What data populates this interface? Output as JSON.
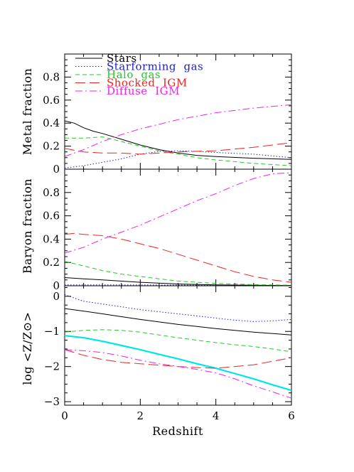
{
  "chart_data": {
    "type": "line",
    "x_label": "Redshift",
    "x_range": [
      0,
      6
    ],
    "x_ticks": [
      0,
      2,
      4,
      6
    ],
    "legend": {
      "placement": "top-left",
      "entries": [
        "Stars",
        "Starforming  gas",
        "Halo  gas",
        "Shocked  IGM",
        "Diffuse  IGM"
      ]
    },
    "colors": {
      "stars": "#000000",
      "starforming": "#2020d0",
      "halo": "#22cc22",
      "shocked": "#ee2222",
      "diffuse": "#ee22ee",
      "cyan": "#00e5e5"
    },
    "panels": [
      {
        "ylabel": "Metal fraction",
        "yrange": [
          0,
          1.0
        ],
        "yticks": [
          0,
          0.2,
          0.4,
          0.6,
          0.8
        ],
        "series": [
          {
            "key": "stars",
            "x": [
              0,
              0.25,
              0.5,
              0.75,
              1,
              1.5,
              2,
              2.5,
              3,
              3.5,
              4,
              5,
              6
            ],
            "y": [
              0.42,
              0.4,
              0.36,
              0.33,
              0.31,
              0.26,
              0.21,
              0.17,
              0.14,
              0.12,
              0.11,
              0.095,
              0.085
            ]
          },
          {
            "key": "starforming",
            "x": [
              0,
              0.5,
              1,
              1.5,
              2,
              2.5,
              3,
              3.5,
              4,
              5,
              6
            ],
            "y": [
              0.01,
              0.03,
              0.06,
              0.09,
              0.13,
              0.155,
              0.16,
              0.155,
              0.145,
              0.13,
              0.1
            ]
          },
          {
            "key": "halo",
            "x": [
              0,
              0.5,
              1,
              1.5,
              2,
              2.5,
              3,
              3.5,
              4,
              5,
              6
            ],
            "y": [
              0.27,
              0.27,
              0.28,
              0.24,
              0.2,
              0.16,
              0.13,
              0.1,
              0.08,
              0.05,
              0.03
            ]
          },
          {
            "key": "shocked",
            "x": [
              0,
              0.5,
              1,
              1.5,
              2,
              2.5,
              3,
              3.5,
              4,
              5,
              6
            ],
            "y": [
              0.18,
              0.15,
              0.14,
              0.14,
              0.13,
              0.14,
              0.15,
              0.155,
              0.16,
              0.19,
              0.23
            ]
          },
          {
            "key": "diffuse",
            "x": [
              0,
              0.5,
              1,
              1.5,
              2,
              2.5,
              3,
              3.5,
              4,
              5,
              6
            ],
            "y": [
              0.11,
              0.17,
              0.24,
              0.3,
              0.35,
              0.39,
              0.43,
              0.46,
              0.49,
              0.53,
              0.56
            ]
          }
        ]
      },
      {
        "ylabel": "Baryon fraction",
        "yrange": [
          0,
          1.0
        ],
        "yticks": [
          0,
          0.2,
          0.4,
          0.6,
          0.8
        ],
        "series": [
          {
            "key": "stars",
            "x": [
              0,
              0.5,
              1,
              2,
              3,
              4,
              5,
              6
            ],
            "y": [
              0.07,
              0.06,
              0.05,
              0.03,
              0.015,
              0.008,
              0.004,
              0.002
            ]
          },
          {
            "key": "starforming",
            "x": [
              0,
              1,
              2,
              3,
              4,
              5,
              6
            ],
            "y": [
              0.008,
              0.008,
              0.007,
              0.006,
              0.004,
              0.003,
              0.002
            ]
          },
          {
            "key": "halo",
            "x": [
              0,
              0.5,
              1,
              1.5,
              2,
              2.5,
              3,
              4,
              5,
              6
            ],
            "y": [
              0.21,
              0.17,
              0.13,
              0.1,
              0.08,
              0.06,
              0.04,
              0.02,
              0.01,
              0.005
            ]
          },
          {
            "key": "shocked",
            "x": [
              0,
              0.25,
              0.5,
              1,
              1.5,
              2,
              2.5,
              3,
              3.5,
              4,
              4.5,
              5,
              5.5,
              6
            ],
            "y": [
              0.44,
              0.45,
              0.44,
              0.43,
              0.4,
              0.36,
              0.32,
              0.27,
              0.22,
              0.17,
              0.12,
              0.08,
              0.05,
              0.03
            ]
          },
          {
            "key": "diffuse",
            "x": [
              0,
              0.5,
              1,
              1.5,
              2,
              2.5,
              3,
              3.5,
              4,
              4.5,
              5,
              5.5,
              6
            ],
            "y": [
              0.28,
              0.33,
              0.4,
              0.46,
              0.52,
              0.59,
              0.66,
              0.73,
              0.79,
              0.86,
              0.92,
              0.96,
              0.97
            ]
          }
        ]
      },
      {
        "ylabel": "log <Z/Z⊙>",
        "yrange": [
          -3.1,
          0.3
        ],
        "yticks": [
          -3,
          -2,
          -1,
          0
        ],
        "series": [
          {
            "key": "stars",
            "x": [
              0,
              0.5,
              1,
              1.5,
              2,
              2.5,
              3,
              3.5,
              4,
              5,
              6
            ],
            "y": [
              -0.35,
              -0.42,
              -0.5,
              -0.58,
              -0.66,
              -0.73,
              -0.8,
              -0.86,
              -0.92,
              -1.02,
              -1.1
            ]
          },
          {
            "key": "starforming",
            "x": [
              0,
              0.25,
              0.5,
              1,
              1.5,
              2,
              2.5,
              3,
              3.5,
              4,
              4.5,
              5,
              5.5,
              6
            ],
            "y": [
              0.05,
              -0.05,
              -0.14,
              -0.22,
              -0.3,
              -0.38,
              -0.44,
              -0.5,
              -0.56,
              -0.62,
              -0.68,
              -0.72,
              -0.7,
              -0.66
            ]
          },
          {
            "key": "halo",
            "x": [
              0,
              0.5,
              1,
              1.5,
              2,
              2.5,
              3,
              3.5,
              4,
              4.5,
              5,
              5.5,
              6
            ],
            "y": [
              -1.02,
              -0.97,
              -0.95,
              -0.97,
              -1.02,
              -1.1,
              -1.18,
              -1.25,
              -1.32,
              -1.38,
              -1.43,
              -1.5,
              -1.58
            ]
          },
          {
            "key": "cyan",
            "x": [
              0,
              0.5,
              1,
              1.5,
              2,
              2.5,
              3,
              3.5,
              4,
              4.5,
              5,
              5.5,
              6
            ],
            "y": [
              -1.12,
              -1.18,
              -1.28,
              -1.4,
              -1.52,
              -1.65,
              -1.78,
              -1.92,
              -2.05,
              -2.2,
              -2.35,
              -2.52,
              -2.68
            ]
          },
          {
            "key": "shocked",
            "x": [
              0,
              0.5,
              1,
              1.5,
              2,
              2.5,
              3,
              3.5,
              4,
              4.5,
              5,
              5.5,
              6
            ],
            "y": [
              -1.52,
              -1.68,
              -1.8,
              -1.88,
              -1.92,
              -1.96,
              -2.0,
              -2.03,
              -2.05,
              -2.0,
              -1.95,
              -1.85,
              -1.75
            ]
          },
          {
            "key": "diffuse",
            "x": [
              0,
              0.5,
              1,
              1.5,
              2,
              2.5,
              3,
              3.5,
              4,
              4.5,
              5,
              5.5,
              6
            ],
            "y": [
              -1.52,
              -1.55,
              -1.6,
              -1.7,
              -1.82,
              -1.92,
              -2.0,
              -2.08,
              -2.18,
              -2.35,
              -2.55,
              -2.72,
              -2.9
            ]
          }
        ]
      }
    ]
  }
}
